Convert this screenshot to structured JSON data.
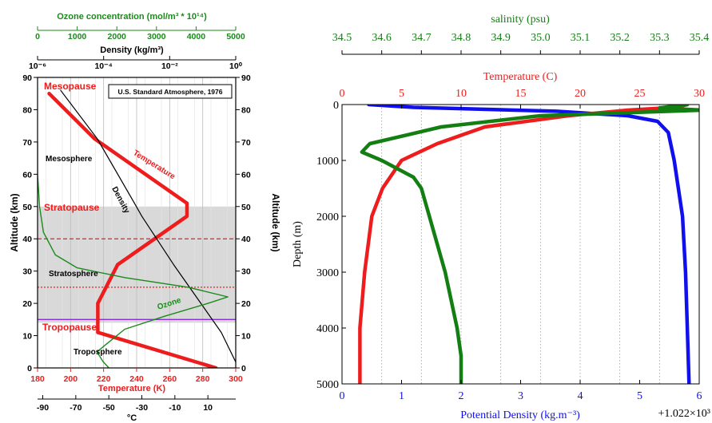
{
  "colors": {
    "ozone": "#1a8a1a",
    "temperature": "#ee1c1c",
    "density": "#000000",
    "salinity": "#137f13",
    "potential_density": "#1010ee",
    "band": "#d9d9d9",
    "tropopause_line": "#8a2be2"
  },
  "chart_data": [
    {
      "type": "line",
      "title": "U.S. Standard Atmosphere, 1976",
      "axes": {
        "ozone": {
          "label": "Ozone concentration (mol/m³ * 10¹⁴)",
          "range": [
            0,
            5000
          ],
          "ticks": [
            "0",
            "1000",
            "2000",
            "3000",
            "4000",
            "5000"
          ]
        },
        "density": {
          "label": "Density (kg/m³)",
          "scale": "log",
          "range": [
            1e-06,
            1
          ],
          "ticks": [
            "10⁻⁶",
            "10⁻⁴",
            "10⁻²",
            "10⁰"
          ]
        },
        "temperature": {
          "label": "Temperature (K)",
          "range": [
            180,
            300
          ],
          "ticks": [
            "180",
            "200",
            "220",
            "240",
            "260",
            "280",
            "300"
          ]
        },
        "celsius": {
          "label": "°C",
          "ticks": [
            "-90",
            "-70",
            "-50",
            "-30",
            "-10",
            "10"
          ]
        },
        "altitude_left": {
          "label": "Altitude (km)",
          "range": [
            0,
            90
          ],
          "ticks": [
            "0",
            "10",
            "20",
            "30",
            "40",
            "50",
            "60",
            "70",
            "80",
            "90"
          ]
        },
        "altitude_right": {
          "label": "Altitude (km)",
          "ticks": [
            "0",
            "10",
            "20",
            "30",
            "40",
            "50",
            "60",
            "70",
            "80",
            "90"
          ]
        }
      },
      "regions": {
        "stratosphere_band": [
          14,
          50
        ]
      },
      "reference_lines": {
        "red_dashed_km": 40,
        "red_dotted_km": 25,
        "tropopause_km": 15
      },
      "annotations": {
        "mesopause": "Mesopause",
        "stratopause": "Stratopause",
        "tropopause": "Tropopause",
        "mesosphere": "Mesosphere",
        "stratosphere": "Stratosphere",
        "troposphere": "Troposphere",
        "temperature": "Temperature",
        "density": "Density",
        "ozone": "Ozone"
      },
      "series": [
        {
          "name": "Temperature",
          "unit": "K",
          "points": [
            [
              288,
              0
            ],
            [
              216.5,
              11
            ],
            [
              216.5,
              20
            ],
            [
              228.5,
              32
            ],
            [
              270.5,
              47
            ],
            [
              270.5,
              51
            ],
            [
              214.5,
              71
            ],
            [
              187,
              85
            ]
          ]
        },
        {
          "name": "Density",
          "unit": "kg/m3",
          "points": [
            [
              1.225,
              0
            ],
            [
              0.364,
              11
            ],
            [
              0.088,
              20
            ],
            [
              0.0132,
              32
            ],
            [
              0.00144,
              47
            ],
            [
              0.00086,
              51
            ],
            [
              6.4e-05,
              71
            ],
            [
              5e-06,
              86
            ]
          ]
        },
        {
          "name": "Ozone",
          "unit": "mol/m3 * 1e14",
          "points": [
            [
              1800,
              0
            ],
            [
              1650,
              2
            ],
            [
              1500,
              5
            ],
            [
              1800,
              8
            ],
            [
              2200,
              12
            ],
            [
              3200,
              16
            ],
            [
              4300,
              20
            ],
            [
              4800,
              22
            ],
            [
              3800,
              25
            ],
            [
              2200,
              28
            ],
            [
              1000,
              31
            ],
            [
              450,
              35
            ],
            [
              150,
              42
            ],
            [
              50,
              50
            ],
            [
              0,
              60
            ],
            [
              0,
              70
            ]
          ]
        }
      ]
    },
    {
      "type": "line",
      "axes": {
        "salinity": {
          "label": "salinity (psu)",
          "range": [
            34.5,
            35.4
          ],
          "ticks": [
            "34.5",
            "34.6",
            "34.7",
            "34.8",
            "34.9",
            "35.0",
            "35.1",
            "35.2",
            "35.3",
            "35.4"
          ]
        },
        "temperature": {
          "label": "Temperature (C)",
          "range": [
            0,
            30
          ],
          "ticks": [
            "0",
            "5",
            "10",
            "15",
            "20",
            "25",
            "30"
          ]
        },
        "depth": {
          "label": "Depth (m)",
          "range": [
            0,
            5000
          ],
          "ticks": [
            "0",
            "1000",
            "2000",
            "3000",
            "4000",
            "5000"
          ]
        },
        "potential_density": {
          "label": "Potential Density (kg.m⁻³)",
          "offset_label": "+1.022×10³",
          "range": [
            0,
            6
          ],
          "ticks": [
            "0",
            "1",
            "2",
            "3",
            "4",
            "5",
            "6"
          ]
        }
      },
      "series": [
        {
          "name": "Potential Density",
          "points": [
            [
              0.45,
              0
            ],
            [
              1.2,
              50
            ],
            [
              3.6,
              120
            ],
            [
              4.8,
              200
            ],
            [
              5.3,
              300
            ],
            [
              5.48,
              500
            ],
            [
              5.58,
              1000
            ],
            [
              5.65,
              1500
            ],
            [
              5.72,
              2000
            ],
            [
              5.77,
              3000
            ],
            [
              5.8,
              4000
            ],
            [
              5.83,
              5000
            ]
          ]
        },
        {
          "name": "Temperature",
          "points": [
            [
              29,
              0
            ],
            [
              28,
              50
            ],
            [
              24,
              100
            ],
            [
              19,
              200
            ],
            [
              12,
              400
            ],
            [
              8,
              700
            ],
            [
              5,
              1000
            ],
            [
              3.4,
              1500
            ],
            [
              2.5,
              2000
            ],
            [
              1.9,
              3000
            ],
            [
              1.5,
              4000
            ],
            [
              1.5,
              5000
            ]
          ]
        },
        {
          "name": "Salinity",
          "points": [
            [
              35.37,
              0
            ],
            [
              35.3,
              60
            ],
            [
              35.41,
              100
            ],
            [
              35.0,
              200
            ],
            [
              34.75,
              400
            ],
            [
              34.57,
              700
            ],
            [
              34.55,
              850
            ],
            [
              34.6,
              1000
            ],
            [
              34.68,
              1300
            ],
            [
              34.7,
              1500
            ],
            [
              34.72,
              2000
            ],
            [
              34.76,
              3000
            ],
            [
              34.79,
              4000
            ],
            [
              34.8,
              4500
            ],
            [
              34.8,
              5000
            ]
          ]
        }
      ]
    }
  ]
}
